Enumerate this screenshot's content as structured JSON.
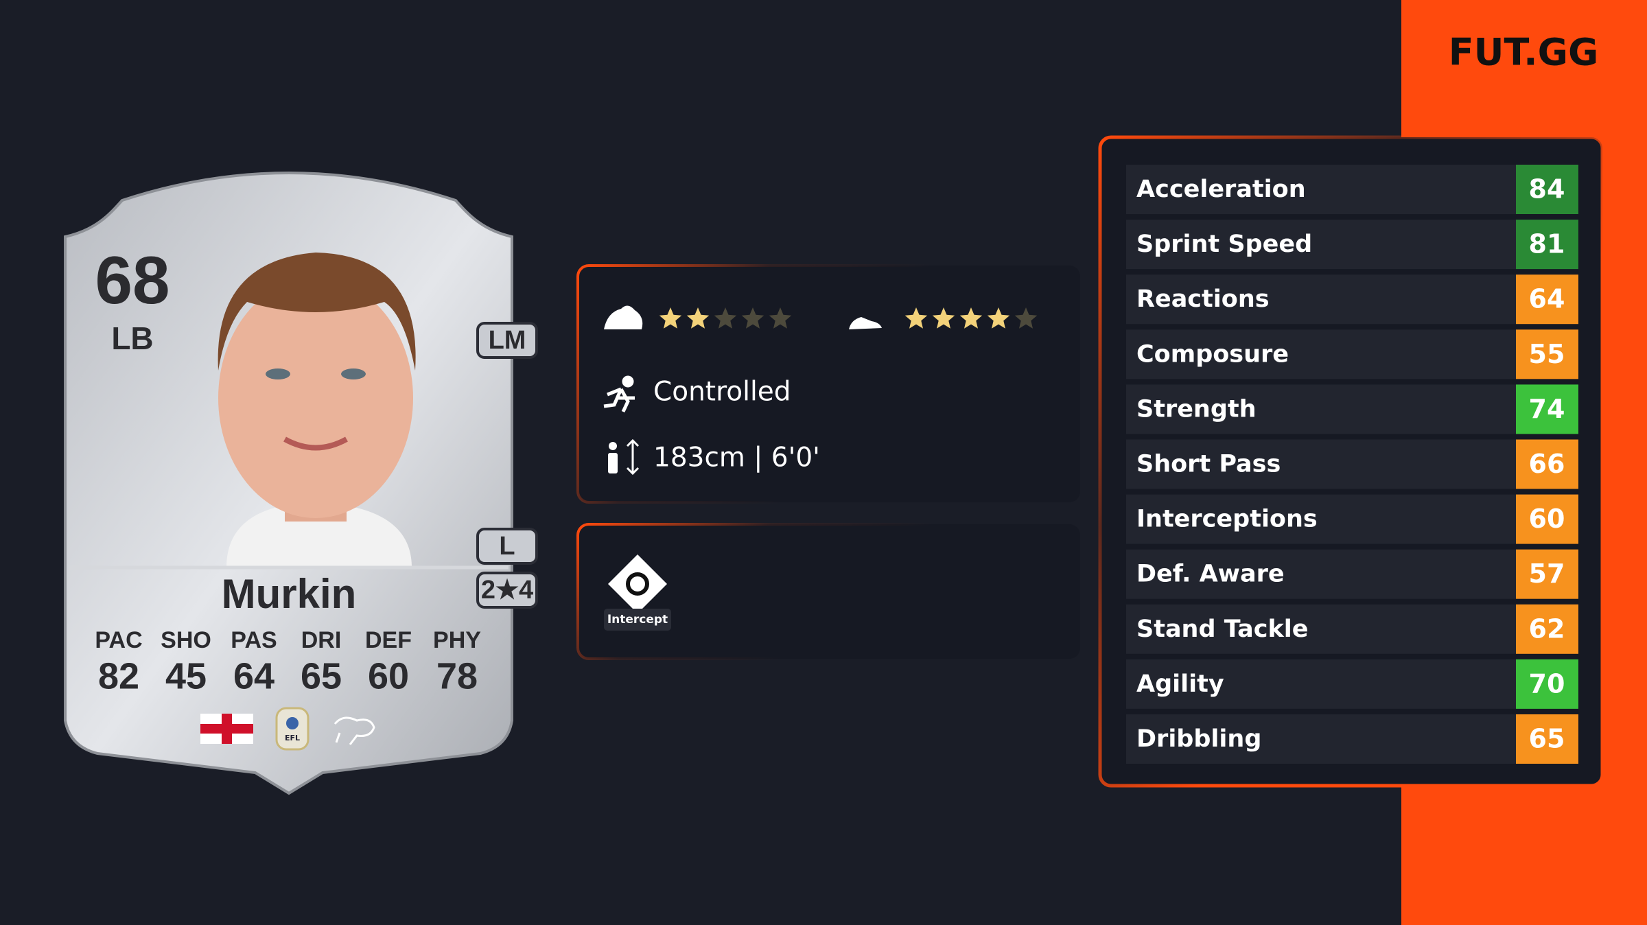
{
  "logo": "FUT.GG",
  "card": {
    "rating": "68",
    "position": "LB",
    "name": "Murkin",
    "alt_positions": [
      "LM",
      "L"
    ],
    "skill_weak": "2★4",
    "face_stats": [
      {
        "label": "PAC",
        "value": "82"
      },
      {
        "label": "SHO",
        "value": "45"
      },
      {
        "label": "PAS",
        "value": "64"
      },
      {
        "label": "DRI",
        "value": "65"
      },
      {
        "label": "DEF",
        "value": "60"
      },
      {
        "label": "PHY",
        "value": "78"
      }
    ],
    "league_badge": "EFL"
  },
  "info": {
    "skill_moves": 2,
    "weak_foot": 4,
    "star_count": 5,
    "accelerate": "Controlled",
    "height": "183cm | 6'0'",
    "playstyle": "Intercept"
  },
  "stats": [
    {
      "name": "Acceleration",
      "value": "84",
      "color": "#2a8a35"
    },
    {
      "name": "Sprint Speed",
      "value": "81",
      "color": "#2a8a35"
    },
    {
      "name": "Reactions",
      "value": "64",
      "color": "#f7921e"
    },
    {
      "name": "Composure",
      "value": "55",
      "color": "#f7921e"
    },
    {
      "name": "Strength",
      "value": "74",
      "color": "#3cc23c"
    },
    {
      "name": "Short Pass",
      "value": "66",
      "color": "#f7921e"
    },
    {
      "name": "Interceptions",
      "value": "60",
      "color": "#f7921e"
    },
    {
      "name": "Def. Aware",
      "value": "57",
      "color": "#f7921e"
    },
    {
      "name": "Stand Tackle",
      "value": "62",
      "color": "#f7921e"
    },
    {
      "name": "Agility",
      "value": "70",
      "color": "#3cc23c"
    },
    {
      "name": "Dribbling",
      "value": "65",
      "color": "#f7921e"
    }
  ]
}
